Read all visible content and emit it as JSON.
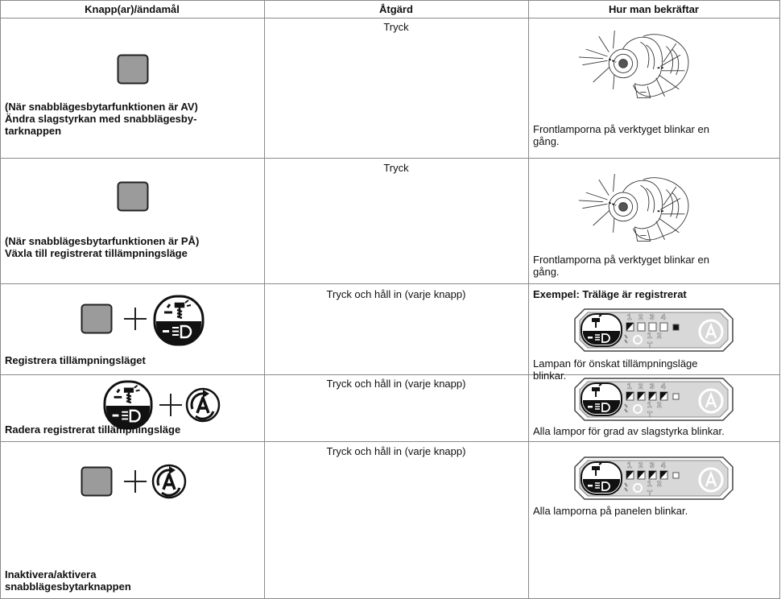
{
  "table": {
    "headers": [
      "Knapp(ar)/ändamål",
      "Åtgärd",
      "Hur man bekräftar"
    ],
    "panel": {
      "levels": [
        "1",
        "2",
        "3",
        "4"
      ],
      "sub": [
        "1",
        "2",
        "T"
      ]
    },
    "rows": [
      {
        "purpose": [
          "(När snabblägesbytarfunktionen är AV)",
          "Ändra slagstyrkan med snabblägesby-",
          "tarknappen"
        ],
        "action": "Tryck",
        "confirm": [
          "Frontlamporna på verktyget blinkar en",
          "gång."
        ]
      },
      {
        "purpose": [
          "(När snabblägesbytarfunktionen är PÅ)",
          "Växla till registrerat tillämpningsläge"
        ],
        "action": "Tryck",
        "confirm": [
          "Frontlamporna på verktyget blinkar en",
          "gång."
        ]
      },
      {
        "purpose": [
          "Registrera tillämpningsläget"
        ],
        "action": "Tryck och håll in (varje knapp)",
        "example": "Exempel: Träläge är registrerat",
        "confirm": [
          "Lampan för önskat tillämpningsläge",
          "blinkar."
        ]
      },
      {
        "purpose": [
          "Radera registrerat tillämpningsläge"
        ],
        "action": "Tryck och håll in (varje knapp)",
        "confirm": [
          "Alla lampor för grad av slagstyrka blinkar."
        ]
      },
      {
        "purpose": [
          "Inaktivera/aktivera",
          "snabblägesbytarknappen"
        ],
        "action": "Tryck och håll in (varje knapp)",
        "confirm": [
          "Alla lamporna på panelen blinkar."
        ]
      }
    ]
  }
}
